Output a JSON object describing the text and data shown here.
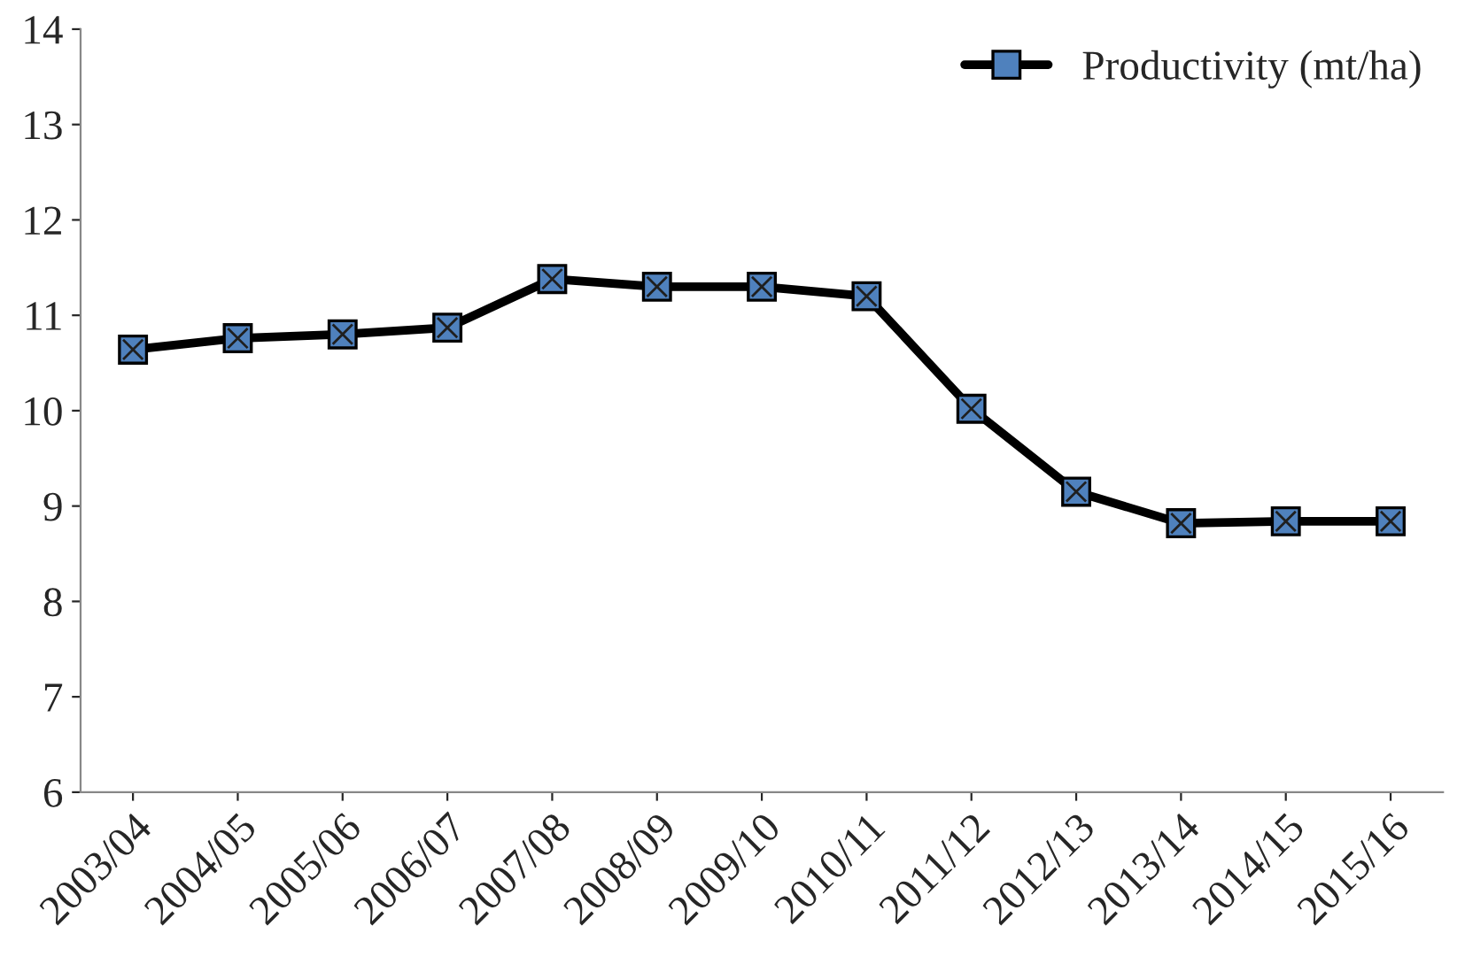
{
  "chart_data": {
    "type": "line",
    "categories": [
      "2003/04",
      "2004/05",
      "2005/06",
      "2006/07",
      "2007/08",
      "2008/09",
      "2009/10",
      "2010/11",
      "2011/12",
      "2012/13",
      "2013/14",
      "2014/15",
      "2015/16"
    ],
    "series": [
      {
        "name": "Productivity (mt/ha)",
        "color": "#000000",
        "values": [
          10.64,
          10.76,
          10.8,
          10.87,
          11.38,
          11.3,
          11.3,
          11.2,
          10.02,
          9.15,
          8.82,
          8.84,
          8.84
        ]
      }
    ],
    "ylim": [
      6,
      14
    ],
    "yticks": [
      6,
      7,
      8,
      9,
      10,
      11,
      12,
      13,
      14
    ],
    "legend": "top right",
    "grid": false,
    "marker": "square",
    "line_style": "solid"
  }
}
